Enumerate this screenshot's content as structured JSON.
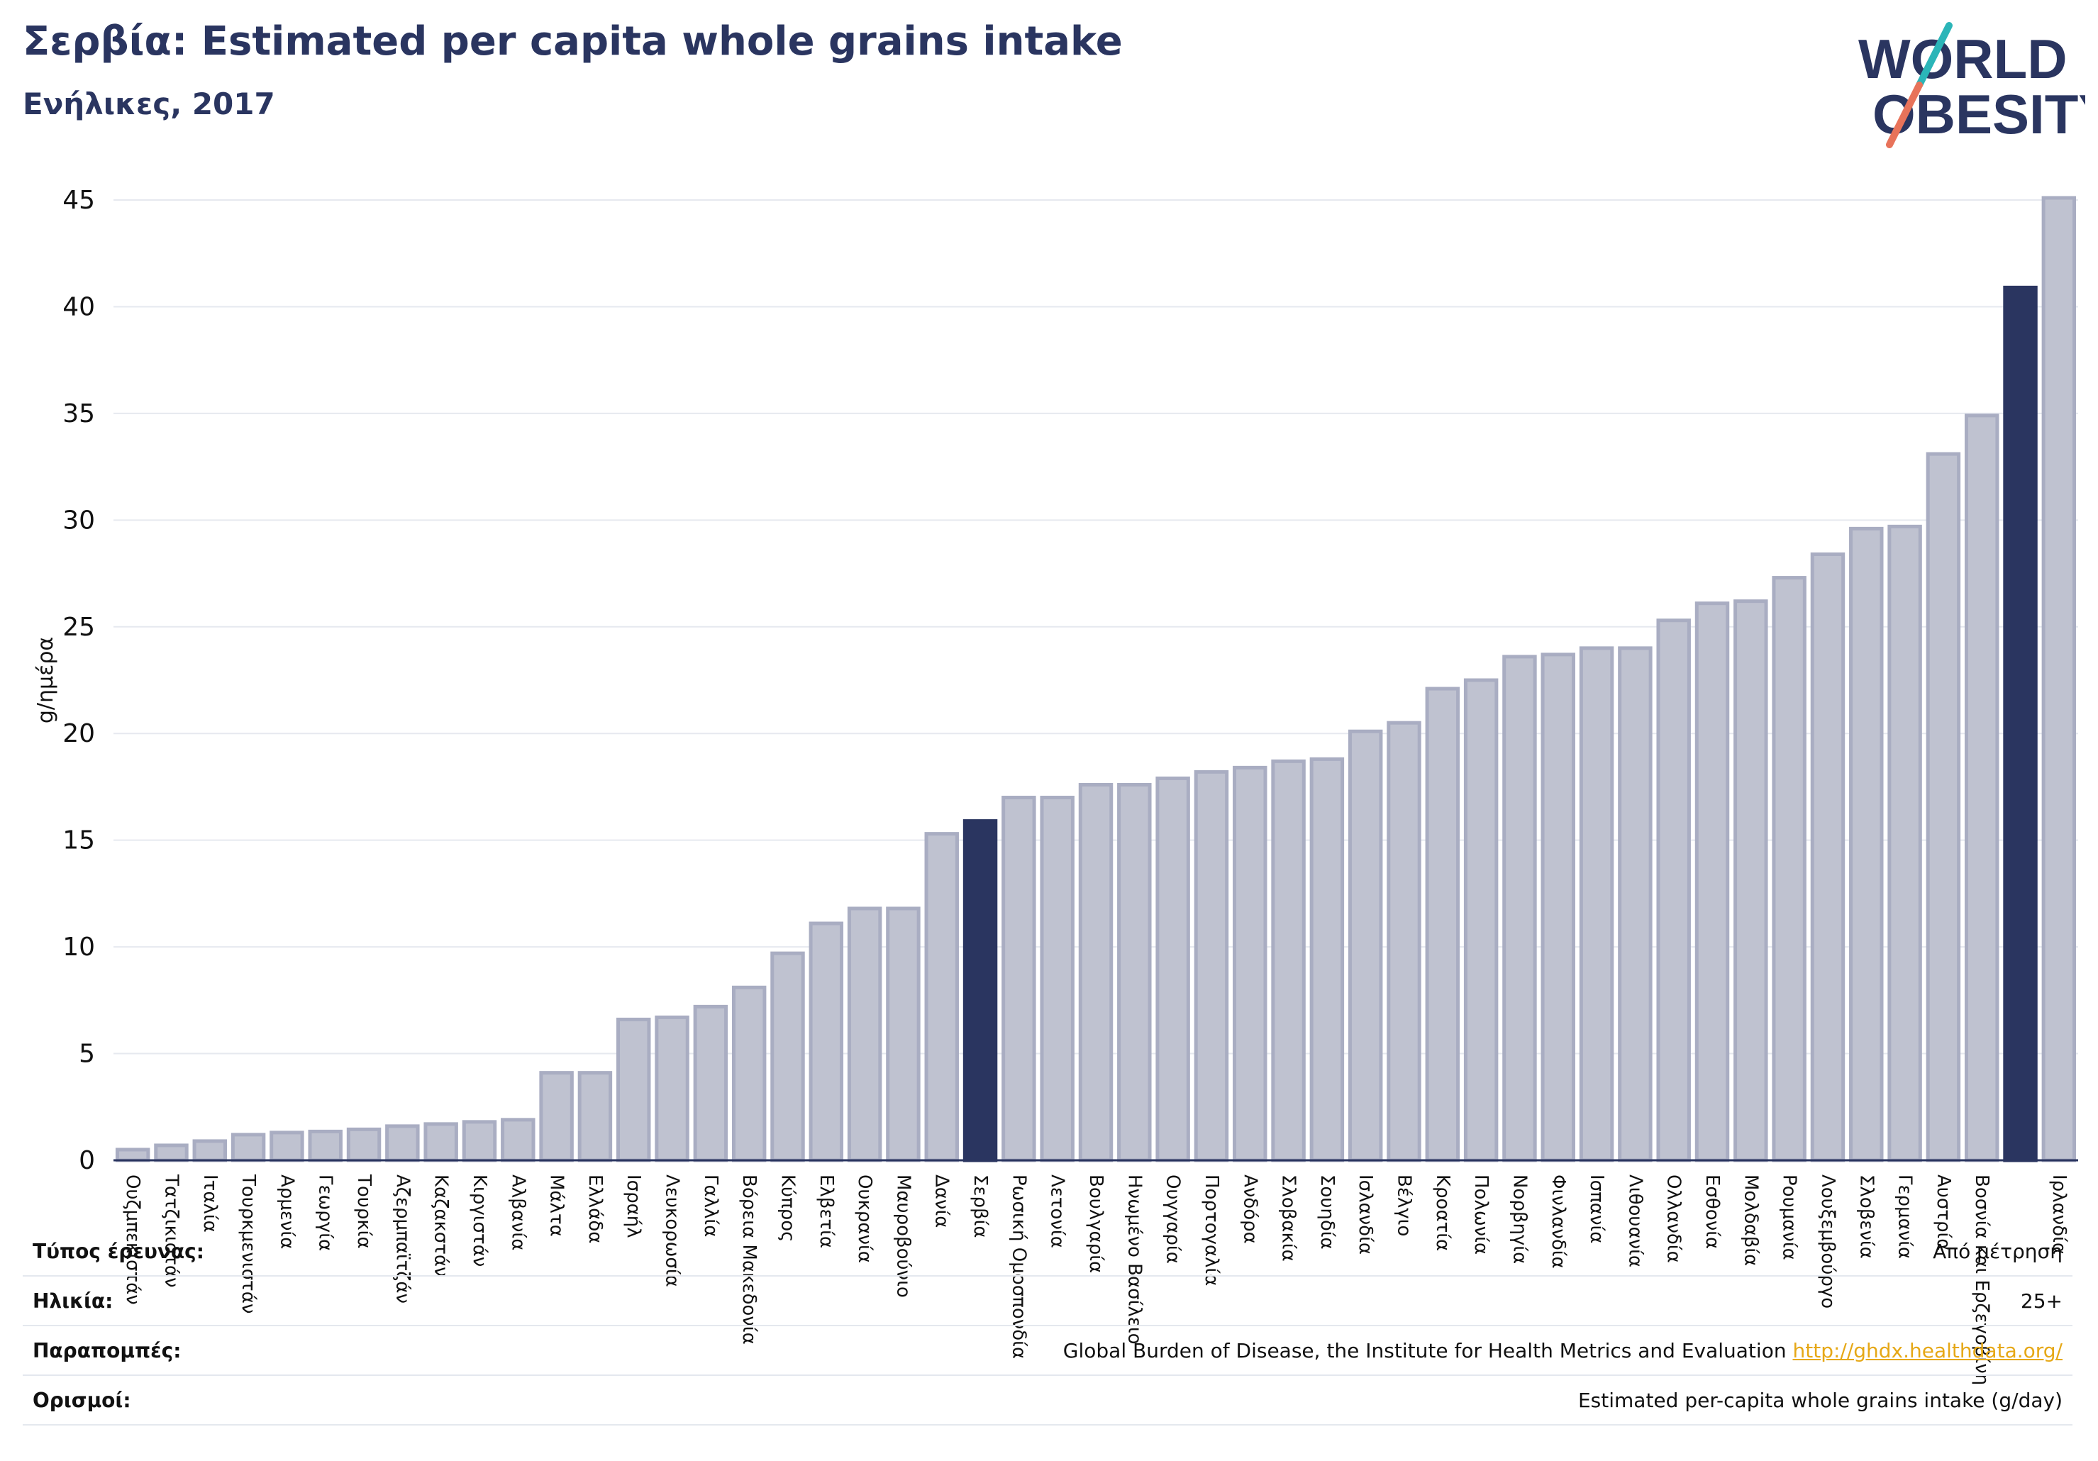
{
  "header": {
    "title": "Σερβία: Estimated per capita whole grains intake",
    "subtitle": "Ενήλικες, 2017"
  },
  "logo": {
    "line1": "WORLD",
    "line2": "OBESITY",
    "colors": {
      "text": "#2a3560",
      "slash_top": "#2bb5b8",
      "slash_bottom": "#e8735a"
    }
  },
  "colors": {
    "bar_fill": "#bfc2d0",
    "bar_stroke": "#a9adc2",
    "highlight": "#2a3560",
    "grid": "#e6e9ef",
    "axis": "#2a3560"
  },
  "chart_data": {
    "type": "bar",
    "title": "Σερβία: Estimated per capita whole grains intake",
    "subtitle": "Ενήλικες, 2017",
    "ylabel": "g/ημέρα",
    "ylim": [
      0,
      45
    ],
    "yticks": [
      0,
      5,
      10,
      15,
      20,
      25,
      30,
      35,
      40,
      45
    ],
    "grid": true,
    "categories": [
      "Ουζμπεκιστάν",
      "Τατζικιστάν",
      "Ιταλία",
      "Τουρκμενιστάν",
      "Αρμενία",
      "Γεωργία",
      "Τουρκία",
      "Αζερμπαϊτζάν",
      "Καζακστάν",
      "Κιργιστάν",
      "Αλβανία",
      "Μάλτα",
      "Ελλάδα",
      "Ισραήλ",
      "Λευκορωσία",
      "Γαλλία",
      "Βόρεια Μακεδονία",
      "Κύπρος",
      "Ελβετία",
      "Ουκρανία",
      "Μαυροβούνιο",
      "Δανία",
      "Σερβία",
      "Ρωσική Ομοσπονδία",
      "Λετονία",
      "Βουλγαρία",
      "Ηνωμένο Βασίλειο",
      "Ουγγαρία",
      "Πορτογαλία",
      "Ανδόρα",
      "Σλοβακία",
      "Σουηδία",
      "Ισλανδία",
      "Βέλγιο",
      "Κροατία",
      "Πολωνία",
      "Νορβηγία",
      "Φινλανδία",
      "Ισπανία",
      "Λιθουανία",
      "Ολλανδία",
      "Εσθονία",
      "Μολδαβία",
      "Ρουμανία",
      "Λουξεμβούργο",
      "Σλοβενία",
      "Γερμανία",
      "Αυστρία",
      "Βοσνία και Ερζεγοβίνη",
      "",
      "Ιρλανδία"
    ],
    "values": [
      0.5,
      0.7,
      0.9,
      1.2,
      1.3,
      1.35,
      1.45,
      1.6,
      1.7,
      1.8,
      1.9,
      4.1,
      4.1,
      6.6,
      6.7,
      7.2,
      8.1,
      9.7,
      11.1,
      11.8,
      11.8,
      15.3,
      15.9,
      17.0,
      17.0,
      17.6,
      17.6,
      17.9,
      18.2,
      18.4,
      18.7,
      18.8,
      20.1,
      20.5,
      22.1,
      22.5,
      23.6,
      23.7,
      24.0,
      24.0,
      25.3,
      26.1,
      26.2,
      27.3,
      28.4,
      29.6,
      29.7,
      33.1,
      34.9,
      40.9,
      45.1
    ],
    "highlight_indices": [
      22,
      49
    ]
  },
  "footer": {
    "rows": [
      {
        "label": "Τύπος έρευνας:",
        "value": "Από μέτρηση"
      },
      {
        "label": "Ηλικία:",
        "value": "25+"
      },
      {
        "label": "Παραπομπές:",
        "value": "Global Burden of Disease, the Institute for Health Metrics and Evaluation",
        "link": "http://ghdx.healthdata.org/"
      },
      {
        "label": "Ορισμοί:",
        "value": "Estimated per-capita whole grains intake (g/day)"
      }
    ]
  }
}
